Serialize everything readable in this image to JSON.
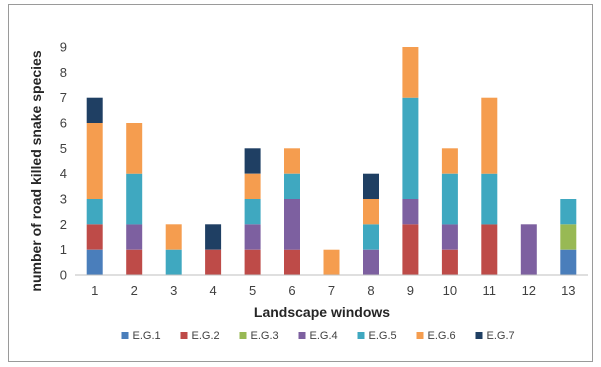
{
  "chart_data": {
    "type": "bar",
    "stacked": true,
    "title": "",
    "xlabel": "Landscape windows",
    "ylabel": "number of road killed snake species",
    "ylim": [
      0,
      9
    ],
    "yticks": [
      0,
      1,
      2,
      3,
      4,
      5,
      6,
      7,
      8,
      9
    ],
    "grid": false,
    "legend_position": "bottom",
    "categories": [
      "1",
      "2",
      "3",
      "4",
      "5",
      "6",
      "7",
      "8",
      "9",
      "10",
      "11",
      "12",
      "13"
    ],
    "series": [
      {
        "name": "E.G.1",
        "color": "#4a7ebb",
        "values": [
          1,
          0,
          0,
          0,
          0,
          0,
          0,
          0,
          0,
          0,
          0,
          0,
          1
        ]
      },
      {
        "name": "E.G.2",
        "color": "#be4b48",
        "values": [
          1,
          1,
          0,
          1,
          1,
          1,
          0,
          0,
          2,
          1,
          2,
          0,
          0
        ]
      },
      {
        "name": "E.G.3",
        "color": "#98b954",
        "values": [
          0,
          0,
          0,
          0,
          0,
          0,
          0,
          0,
          0,
          0,
          0,
          0,
          1
        ]
      },
      {
        "name": "E.G.4",
        "color": "#7d60a0",
        "values": [
          0,
          1,
          0,
          0,
          1,
          2,
          0,
          1,
          1,
          1,
          0,
          2,
          0
        ]
      },
      {
        "name": "E.G.5",
        "color": "#3fa8c0",
        "values": [
          1,
          2,
          1,
          0,
          1,
          1,
          0,
          1,
          4,
          2,
          2,
          0,
          1
        ]
      },
      {
        "name": "E.G.6",
        "color": "#f59d4f",
        "values": [
          3,
          2,
          1,
          0,
          1,
          1,
          1,
          1,
          2,
          1,
          3,
          0,
          0
        ]
      },
      {
        "name": "E.G.7",
        "color": "#1f3f63",
        "values": [
          1,
          0,
          0,
          1,
          1,
          0,
          0,
          1,
          0,
          0,
          0,
          0,
          0
        ]
      }
    ]
  }
}
